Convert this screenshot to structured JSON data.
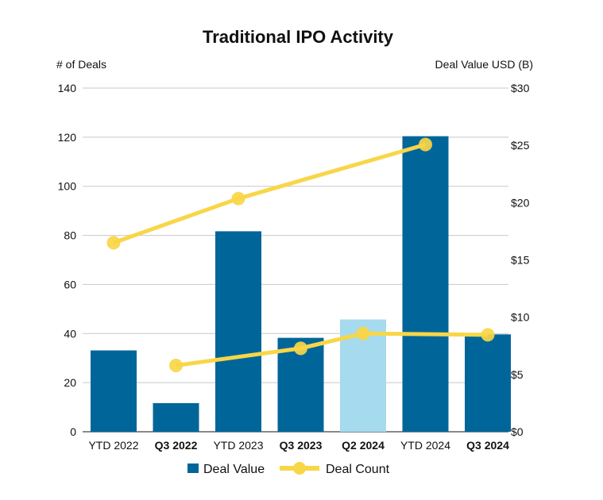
{
  "chart_data": {
    "type": "bar",
    "title": "Traditional IPO Activity",
    "y_left_label": "# of Deals",
    "y_right_label": "Deal Value USD (B)",
    "categories": [
      "YTD 2022",
      "Q3 2022",
      "YTD 2023",
      "Q3 2023",
      "Q2 2024",
      "YTD 2024",
      "Q3 2024"
    ],
    "category_bold": [
      false,
      true,
      false,
      true,
      true,
      false,
      true
    ],
    "y_left_ticks": [
      "0",
      "20",
      "40",
      "60",
      "80",
      "100",
      "120",
      "140"
    ],
    "y_right_ticks": [
      "$0",
      "$5",
      "$10",
      "$15",
      "$20",
      "$25",
      "$30"
    ],
    "ylim_left": [
      0,
      140
    ],
    "ylim_right": [
      0,
      30
    ],
    "grid": true,
    "legend_position": "bottom",
    "series": [
      {
        "name": "Deal Value",
        "type": "bar",
        "axis": "right",
        "values": [
          7.1,
          2.5,
          17.5,
          8.2,
          9.8,
          25.8,
          8.5
        ],
        "colors": [
          "#00669a",
          "#00669a",
          "#00669a",
          "#00669a",
          "#a6daee",
          "#00669a",
          "#00669a"
        ]
      },
      {
        "name": "Deal Count",
        "type": "line",
        "axis": "left",
        "color": "#f8d648",
        "segments": [
          {
            "x": [
              "YTD 2022",
              "YTD 2023",
              "YTD 2024"
            ],
            "values": [
              77,
              95,
              117
            ]
          },
          {
            "x": [
              "Q3 2022",
              "Q3 2023",
              "Q2 2024",
              "Q3 2024"
            ],
            "values": [
              27,
              34,
              40,
              39.5
            ]
          }
        ]
      }
    ]
  }
}
